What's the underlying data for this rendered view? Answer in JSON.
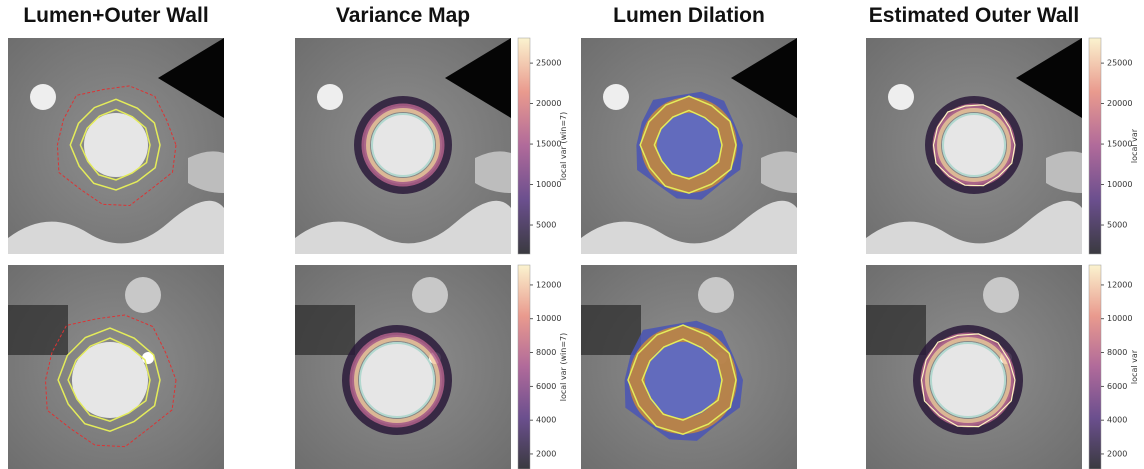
{
  "panels": [
    {
      "title": "Lumen+Outer Wall"
    },
    {
      "title": "Variance Map"
    },
    {
      "title": "Lumen Dilation"
    },
    {
      "title": "Estimated Outer Wall"
    }
  ],
  "colorbars": [
    {
      "label": "local var (win=7)",
      "lim": [
        1420,
        28100
      ],
      "ticks": [
        5000,
        10000,
        15000,
        20000,
        25000
      ]
    },
    {
      "label": "local var",
      "lim": [
        1420,
        28100
      ],
      "ticks": [
        5000,
        10000,
        15000,
        20000,
        25000
      ]
    },
    {
      "label": "local var (win=7)",
      "lim": [
        1110,
        13180
      ],
      "ticks": [
        2000,
        4000,
        6000,
        8000,
        10000,
        12000
      ]
    },
    {
      "label": "local var",
      "lim": [
        1110,
        13180
      ],
      "ticks": [
        2000,
        4000,
        6000,
        8000,
        10000,
        12000
      ]
    }
  ]
}
